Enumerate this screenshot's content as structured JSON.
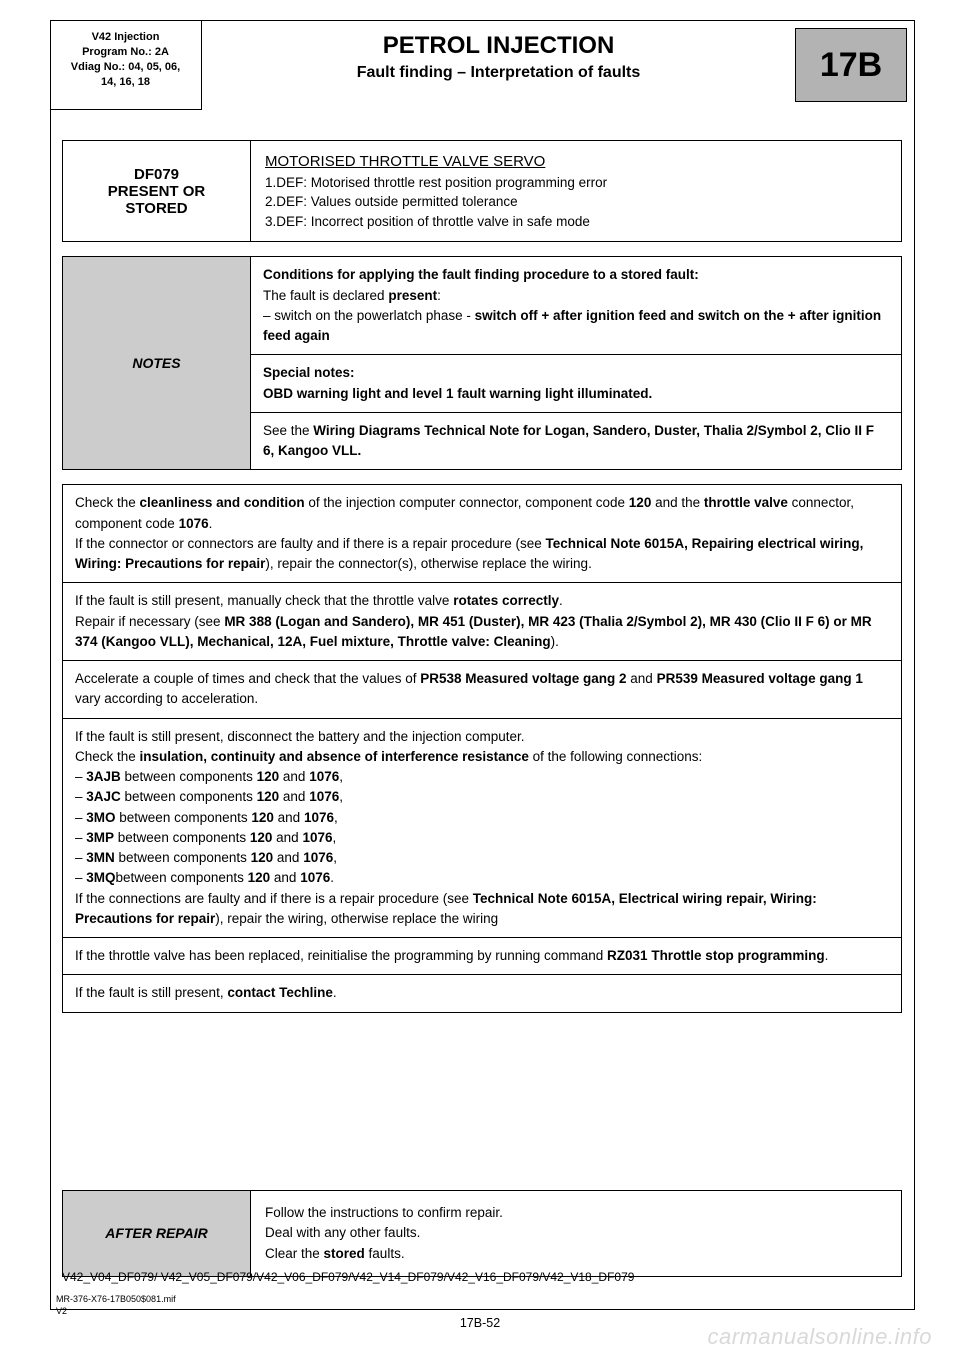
{
  "header": {
    "left_l1": "V42 Injection",
    "left_l2": "Program No.: 2A",
    "left_l3": "Vdiag No.: 04, 05, 06,",
    "left_l4": "14, 16, 18",
    "title": "PETROL INJECTION",
    "subtitle": "Fault finding – Interpretation of faults",
    "badge": "17B"
  },
  "fault": {
    "code_l1": "DF079",
    "code_l2": "PRESENT OR",
    "code_l3": "STORED",
    "title": "MOTORISED THROTTLE VALVE SERVO",
    "d1": "1.DEF: Motorised throttle rest position programming error",
    "d2": "2.DEF: Values outside permitted tolerance",
    "d3": "3.DEF: Incorrect position of throttle valve in safe mode"
  },
  "notes": {
    "label": "NOTES",
    "r1a": "Conditions for applying the fault finding procedure to a stored fault:",
    "r1b": "The fault is declared ",
    "r1b_bold": "present",
    "r1b_after": ":",
    "r1c": "–  switch on the powerlatch phase - ",
    "r1c_bold": "switch off + after ignition feed and switch on the + after ignition feed again",
    "r2a": "Special notes:",
    "r2b": "OBD warning light and level 1 fault warning light illuminated.",
    "r3a": "See the ",
    "r3b": "Wiring Diagrams Technical Note for Logan, Sandero, Duster, Thalia 2/Symbol 2, Clio II F 6, Kangoo VLL."
  },
  "steps": {
    "s1": "Check the <b>cleanliness and condition</b> of the injection computer connector, component code <b>120</b> and the <b>throttle valve</b> connector, component code <b>1076</b>.<br>If the connector or connectors are faulty and if there is a repair procedure (see <b>Technical Note 6015A, Repairing electrical wiring, Wiring: Precautions for repair</b>), repair the connector(s), otherwise replace the wiring.",
    "s2": "If the fault is still present, manually check that the throttle valve <b>rotates correctly</b>.<br>Repair if necessary (see <b>MR 388 (Logan and Sandero), MR 451 (Duster), MR 423 (Thalia 2/Symbol 2), MR 430 (Clio II F 6) or MR 374 (Kangoo VLL), Mechanical, 12A, Fuel mixture, Throttle valve: Cleaning</b>).",
    "s3": "Accelerate a couple of times and check that the values of <b>PR538 Measured voltage gang 2</b> and <b>PR539 Measured voltage gang 1</b> vary according to acceleration.",
    "s4": "If the fault is still present, disconnect the battery and the injection computer.<br>Check the <b>insulation, continuity and absence of interference resistance</b> of the following connections:<br>–  <b>3AJB</b> between components <b>120</b> and <b>1076</b>,<br>–  <b>3AJC</b> between components <b>120</b> and <b>1076</b>,<br>–  <b>3MO</b> between components <b>120</b> and <b>1076</b>,<br>–  <b>3MP</b> between components <b>120</b> and <b>1076</b>,<br>–  <b>3MN</b> between components <b>120</b> and <b>1076</b>,<br>–  <b>3MQ</b>between components <b>120</b> and <b>1076</b>.<br>If the connections are faulty and if there is a repair procedure (see <b>Technical Note 6015A, Electrical wiring repair, Wiring: Precautions for repair</b>), repair the wiring, otherwise replace the wiring",
    "s5": "If the throttle valve has been replaced, reinitialise the programming by running command <b>RZ031 Throttle stop programming</b>.",
    "s6": "If the fault is still present, <b>contact Techline</b>."
  },
  "after": {
    "label": "AFTER REPAIR",
    "l1": "Follow the instructions to confirm repair.",
    "l2": "Deal with any other faults.",
    "l3a": "Clear the ",
    "l3b": "stored",
    "l3c": " faults."
  },
  "ref": "V42_V04_DF079/ V42_V05_DF079/V42_V06_DF079/V42_V14_DF079/V42_V16_DF079/V42_V18_DF079",
  "foot": {
    "l1": "MR-376-X76-17B050$081.mif",
    "l2": "V2"
  },
  "pagenum": "17B-52",
  "watermark": "carmanualsonline.info"
}
